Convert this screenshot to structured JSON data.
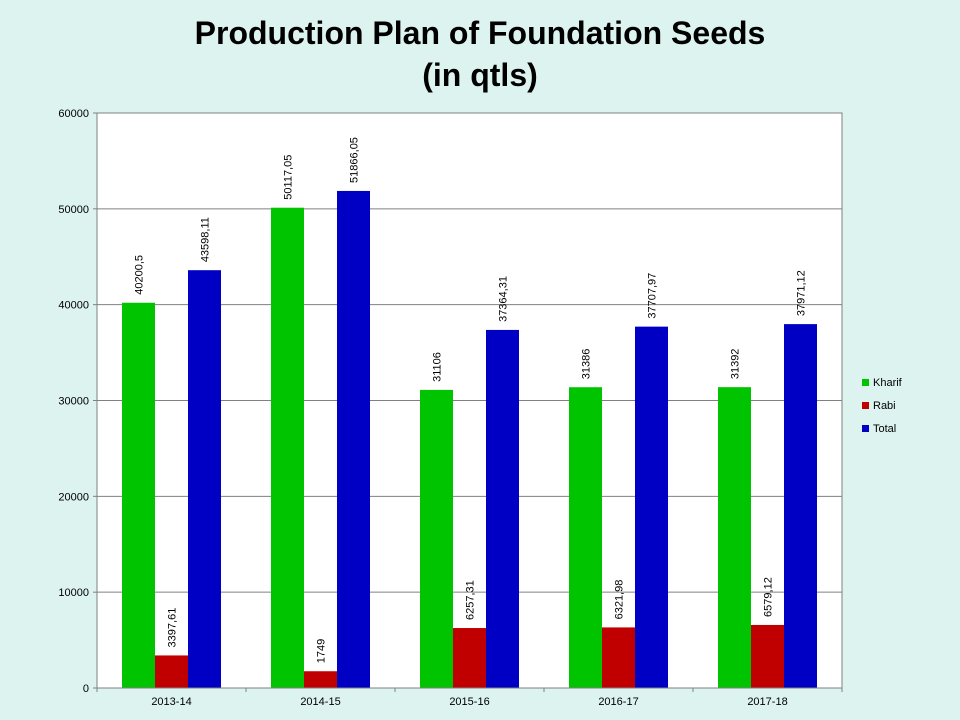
{
  "page": {
    "title_line1": "Production Plan of Foundation Seeds",
    "title_line2": "(in qtls)",
    "background_color": "#dcf3ef",
    "plot_background_color": "#ffffff"
  },
  "chart_data": {
    "type": "bar",
    "title": "Production Plan of Foundation Seeds (in qtls)",
    "xlabel": "",
    "ylabel": "",
    "categories": [
      "2013-14",
      "2014-15",
      "2015-16",
      "2016-17",
      "2017-18"
    ],
    "series": [
      {
        "name": "Kharif",
        "color": "#00c400",
        "values": [
          40200.5,
          50117.05,
          31106,
          31386,
          31392
        ],
        "labels": [
          "40200,5",
          "50117,05",
          "31106",
          "31386",
          "31392"
        ]
      },
      {
        "name": "Rabi",
        "color": "#c00000",
        "values": [
          3397.61,
          1749,
          6257.31,
          6321.98,
          6579.12
        ],
        "labels": [
          "3397,61",
          "1749",
          "6257,31",
          "6321,98",
          "6579,12"
        ]
      },
      {
        "name": "Total",
        "color": "#0000c4",
        "values": [
          43598.11,
          51866.05,
          37364.31,
          37707.97,
          37971.12
        ],
        "labels": [
          "43598,11",
          "51866,05",
          "37364,31",
          "37707,97",
          "37971,12"
        ]
      }
    ],
    "ylim": [
      0,
      60000
    ],
    "yticks": [
      0,
      10000,
      20000,
      30000,
      40000,
      50000,
      60000
    ],
    "ytick_labels": [
      "0",
      "10000",
      "20000",
      "30000",
      "40000",
      "50000",
      "60000"
    ],
    "grid": true,
    "legend_position": "right"
  }
}
